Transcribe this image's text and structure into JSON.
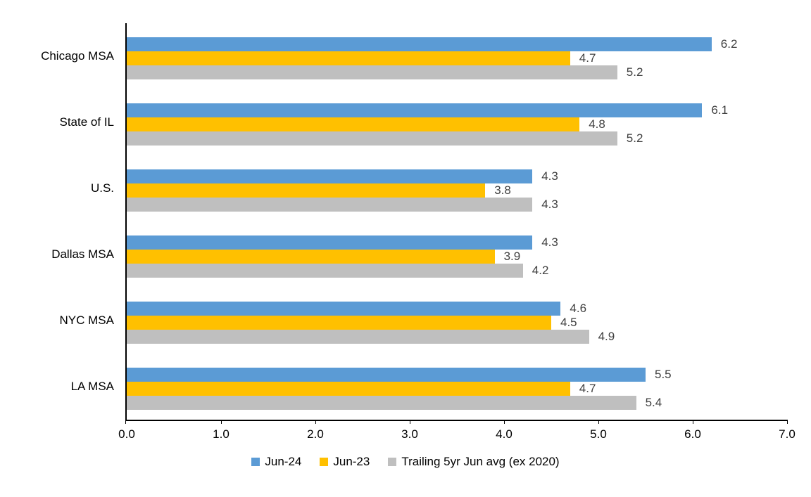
{
  "chart_data": {
    "type": "bar",
    "orientation": "horizontal",
    "title": "",
    "xlabel": "",
    "ylabel": "",
    "categories": [
      "Chicago MSA",
      "State of IL",
      "U.S.",
      "Dallas MSA",
      "NYC MSA",
      "LA MSA"
    ],
    "series": [
      {
        "name": "Jun-24",
        "color": "#5B9BD5",
        "values": [
          6.2,
          6.1,
          4.3,
          4.3,
          4.6,
          5.5
        ]
      },
      {
        "name": "Jun-23",
        "color": "#FFC000",
        "values": [
          4.7,
          4.8,
          3.8,
          3.9,
          4.5,
          4.7
        ]
      },
      {
        "name": "Trailing 5yr Jun avg (ex 2020)",
        "color": "#BFBFBF",
        "values": [
          5.2,
          5.2,
          4.3,
          4.2,
          4.9,
          5.4
        ]
      }
    ],
    "xlim": [
      0.0,
      7.0
    ],
    "x_tick_labels": [
      "0.0",
      "1.0",
      "2.0",
      "3.0",
      "4.0",
      "5.0",
      "6.0",
      "7.0"
    ],
    "data_labels": true,
    "data_label_decimals": 1,
    "data_label_color": "#404040",
    "axis_color": "#000000",
    "grid": false,
    "legend_position": "bottom"
  }
}
